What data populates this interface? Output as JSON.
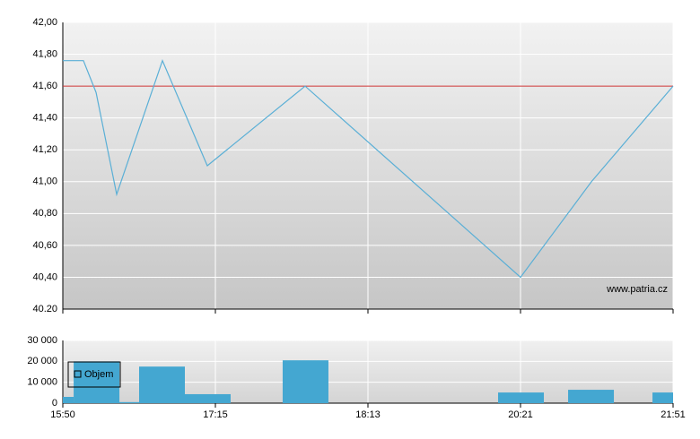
{
  "chart_data": [
    {
      "type": "line",
      "xlim": [
        0,
        4
      ],
      "xticks": [
        0,
        1,
        2,
        3,
        4
      ],
      "ylim": [
        40.2,
        42.0
      ],
      "yticks": [
        {
          "value": 42.0,
          "label": "42,00"
        },
        {
          "value": 41.8,
          "label": "41,80"
        },
        {
          "value": 41.6,
          "label": "41,60"
        },
        {
          "value": 41.4,
          "label": "41,40"
        },
        {
          "value": 41.2,
          "label": "41,20"
        },
        {
          "value": 41.0,
          "label": "41,00"
        },
        {
          "value": 40.8,
          "label": "40,80"
        },
        {
          "value": 40.6,
          "label": "40,60"
        },
        {
          "value": 40.4,
          "label": "40,40"
        },
        {
          "value": 40.2,
          "label": "40.20"
        }
      ],
      "x": [
        0,
        0.135,
        0.218,
        0.353,
        0.653,
        0.947,
        1.588,
        3.0,
        3.465,
        4.0
      ],
      "series": [
        {
          "color": "#5aafd6",
          "values": [
            41.76,
            41.76,
            41.56,
            40.92,
            41.76,
            41.1,
            41.6,
            40.4,
            41.0,
            41.6
          ]
        }
      ],
      "reference_line": {
        "value": 41.6,
        "color": "#cc3333"
      },
      "annotation": "www.patria.cz",
      "grid": true
    },
    {
      "type": "bar",
      "xlim": [
        0,
        4
      ],
      "xticks": [
        {
          "value": 0,
          "label": "15:50"
        },
        {
          "value": 1,
          "label": "17:15"
        },
        {
          "value": 2,
          "label": "18:13"
        },
        {
          "value": 3,
          "label": "20:21"
        },
        {
          "value": 4,
          "label": "21:51"
        }
      ],
      "ylim": [
        0,
        30000
      ],
      "yticks": [
        {
          "value": 30000,
          "label": "30 000"
        },
        {
          "value": 20000,
          "label": "20 000"
        },
        {
          "value": 10000,
          "label": "10 000"
        },
        0
      ],
      "x": [
        0,
        0.071,
        0.371,
        0.5,
        0.8,
        1.441,
        2.853,
        3.312,
        3.865
      ],
      "x2": [
        0.071,
        0.371,
        0.5,
        0.8,
        1.1,
        1.741,
        3.153,
        3.612,
        4.0
      ],
      "series": [
        {
          "name": "Objem",
          "color": "#44a7d1",
          "values": [
            3000,
            20000,
            500,
            17500,
            4300,
            20500,
            5100,
            6400,
            5100
          ]
        }
      ],
      "legend": "upper left",
      "grid": true
    }
  ]
}
